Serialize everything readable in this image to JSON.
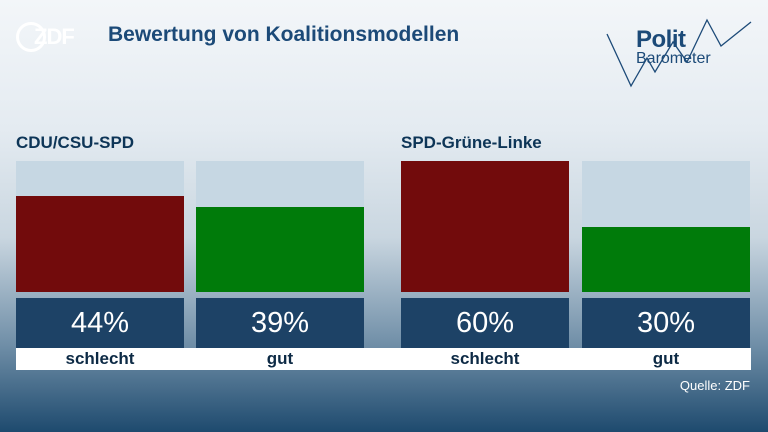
{
  "header": {
    "title": "Bewertung von Koalitionsmodellen",
    "logo_text": "ZDF",
    "brand_line1": "Polit",
    "brand_line2": "Barometer"
  },
  "source": "Quelle: ZDF",
  "colors": {
    "schlecht": "#720b0c",
    "gut": "#007b0a",
    "bar_background": "#c6d7e3",
    "value_box": "#1d4266",
    "title": "#1c4a78"
  },
  "chart_data": {
    "type": "bar",
    "title": "Bewertung von Koalitionsmodellen",
    "ylim": [
      0,
      60
    ],
    "groups": [
      {
        "name": "CDU/CSU-SPD",
        "bars": [
          {
            "label": "schlecht",
            "value": 44,
            "display": "44%"
          },
          {
            "label": "gut",
            "value": 39,
            "display": "39%"
          }
        ]
      },
      {
        "name": "SPD-Grüne-Linke",
        "bars": [
          {
            "label": "schlecht",
            "value": 60,
            "display": "60%"
          },
          {
            "label": "gut",
            "value": 30,
            "display": "30%"
          }
        ]
      }
    ]
  }
}
